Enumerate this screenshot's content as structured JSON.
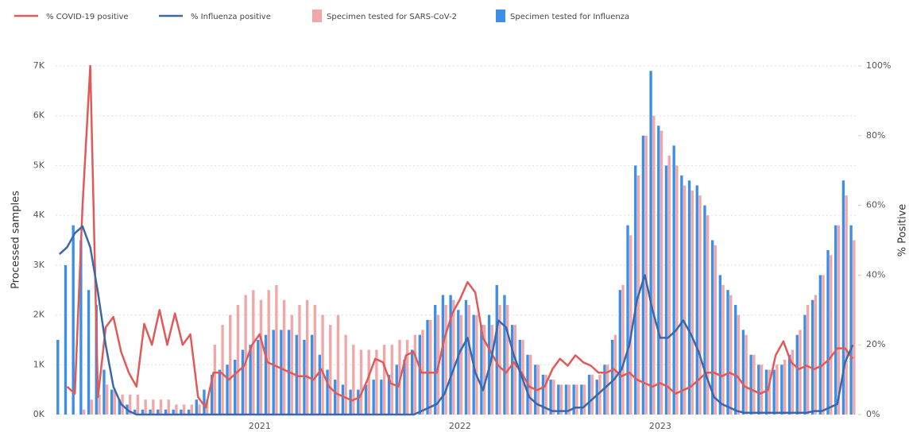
{
  "chart_data": {
    "type": "combo",
    "y_label": "Processed samples",
    "y2_label": "% Positive",
    "categories": [
      null,
      null,
      null,
      null,
      null,
      null,
      null,
      null,
      null,
      null,
      null,
      null,
      null,
      null,
      null,
      null,
      null,
      null,
      null,
      null,
      null,
      null,
      null,
      null,
      null,
      null,
      "2021",
      null,
      null,
      null,
      null,
      null,
      null,
      null,
      null,
      null,
      null,
      null,
      null,
      null,
      null,
      null,
      null,
      null,
      null,
      null,
      null,
      null,
      null,
      null,
      null,
      null,
      "2022",
      null,
      null,
      null,
      null,
      null,
      null,
      null,
      null,
      null,
      null,
      null,
      null,
      null,
      null,
      null,
      null,
      null,
      null,
      null,
      null,
      null,
      null,
      null,
      null,
      null,
      "2023",
      null,
      null,
      null,
      null,
      null,
      null,
      null,
      null,
      null,
      null,
      null,
      null,
      null,
      null,
      null,
      null,
      null,
      null,
      null,
      null,
      null,
      null,
      null,
      null,
      null
    ],
    "series": [
      {
        "name": "% COVID-19 positive",
        "type": "line",
        "axis": "y2",
        "color": "#e05a5a",
        "values": [
          null,
          8,
          6,
          60,
          100,
          5,
          25,
          28,
          18,
          12,
          8,
          26,
          20,
          30,
          20,
          29,
          20,
          23,
          5,
          2,
          12,
          12,
          10,
          12,
          14,
          20,
          23,
          15,
          14,
          13,
          12,
          11,
          11,
          10,
          13,
          8,
          6,
          5,
          4,
          5,
          10,
          16,
          15,
          9,
          8,
          17,
          18,
          12,
          12,
          12,
          22,
          29,
          33,
          38,
          35,
          22,
          18,
          14,
          12,
          15,
          12,
          8,
          7,
          8,
          13,
          16,
          14,
          17,
          15,
          14,
          12,
          12,
          13,
          11,
          12,
          10,
          9,
          8,
          9,
          8,
          6,
          7,
          8,
          10,
          12,
          12,
          11,
          12,
          11,
          8,
          7,
          6,
          7,
          17,
          21,
          15,
          13,
          14,
          13,
          14,
          16,
          19,
          19,
          16
        ]
      },
      {
        "name": "% Influenza positive",
        "type": "line",
        "axis": "y2",
        "color": "#3a68aa",
        "values": [
          46,
          48,
          52,
          54,
          48,
          35,
          20,
          8,
          3,
          1,
          0,
          0,
          0,
          0,
          0,
          0,
          0,
          0,
          0,
          0,
          0,
          0,
          0,
          0,
          0,
          0,
          0,
          0,
          0,
          0,
          0,
          0,
          0,
          0,
          0,
          0,
          0,
          0,
          0,
          0,
          0,
          0,
          0,
          0,
          0,
          0,
          0,
          1,
          2,
          3,
          6,
          12,
          18,
          22,
          12,
          7,
          15,
          27,
          25,
          17,
          11,
          5,
          3,
          2,
          1,
          1,
          1,
          2,
          2,
          4,
          6,
          8,
          10,
          13,
          20,
          33,
          40,
          30,
          22,
          22,
          24,
          27,
          23,
          18,
          11,
          5,
          3,
          2,
          1,
          0.5,
          0.5,
          0.5,
          0.5,
          0.5,
          0.5,
          0.5,
          0.5,
          0.5,
          1,
          1,
          2,
          3,
          15,
          20
        ]
      },
      {
        "name": "Specimen tested for SARS-CoV-2",
        "type": "bar",
        "color": "#f1a7a7",
        "values": [
          0,
          0,
          0,
          100,
          300,
          400,
          600,
          500,
          400,
          400,
          400,
          300,
          300,
          300,
          300,
          200,
          200,
          200,
          200,
          300,
          1400,
          1800,
          2000,
          2200,
          2400,
          2500,
          2300,
          2500,
          2600,
          2300,
          2000,
          2200,
          2300,
          2200,
          2000,
          1800,
          2000,
          1600,
          1400,
          1300,
          1300,
          1300,
          1400,
          1400,
          1500,
          1500,
          1600,
          1700,
          1900,
          2000,
          2200,
          2300,
          2000,
          2200,
          2000,
          1800,
          1800,
          2200,
          2200,
          1800,
          1500,
          1200,
          1000,
          800,
          700,
          600,
          600,
          600,
          600,
          800,
          800,
          1000,
          1600,
          2600,
          3600,
          4800,
          5600,
          6000,
          5700,
          5200,
          5000,
          4600,
          4500,
          4400,
          4000,
          3400,
          2600,
          2400,
          2000,
          1600,
          1200,
          1000,
          900,
          1000,
          1100,
          1300,
          1700,
          2200,
          2400,
          2800,
          3200,
          3800,
          4400,
          3500
        ]
      },
      {
        "name": "Specimen tested for Influenza",
        "type": "bar",
        "color": "#3d8ee6",
        "values": [
          1500,
          3000,
          3800,
          3500,
          2500,
          2200,
          900,
          500,
          300,
          200,
          100,
          100,
          100,
          100,
          100,
          100,
          100,
          100,
          300,
          500,
          800,
          900,
          1000,
          1100,
          1300,
          1400,
          1500,
          1600,
          1700,
          1700,
          1700,
          1600,
          1500,
          1600,
          1200,
          900,
          700,
          600,
          500,
          500,
          600,
          700,
          700,
          800,
          1000,
          1100,
          1300,
          1600,
          1900,
          2200,
          2400,
          2400,
          2100,
          2300,
          2000,
          1800,
          2000,
          2600,
          2400,
          1800,
          1500,
          1200,
          1000,
          800,
          700,
          600,
          600,
          600,
          600,
          800,
          700,
          1000,
          1500,
          2500,
          3800,
          5000,
          5600,
          6900,
          5800,
          5000,
          5400,
          4800,
          4700,
          4600,
          4200,
          3500,
          2800,
          2500,
          2200,
          1700,
          1200,
          1000,
          900,
          900,
          1000,
          1200,
          1600,
          2000,
          2300,
          2800,
          3300,
          3800,
          4700,
          3800
        ]
      }
    ],
    "ylim": [
      0,
      7000
    ],
    "yticks": [
      {
        "value": 0,
        "label": "0K"
      },
      {
        "value": 1000,
        "label": "1K"
      },
      {
        "value": 2000,
        "label": "2K"
      },
      {
        "value": 3000,
        "label": "3K"
      },
      {
        "value": 4000,
        "label": "4K"
      },
      {
        "value": 5000,
        "label": "5K"
      },
      {
        "value": 6000,
        "label": "6K"
      },
      {
        "value": 7000,
        "label": "7K"
      }
    ],
    "y2lim": [
      0,
      100
    ],
    "y2ticks": [
      {
        "value": 0,
        "label": "0%"
      },
      {
        "value": 20,
        "label": "20%"
      },
      {
        "value": 40,
        "label": "40%"
      },
      {
        "value": 60,
        "label": "60%"
      },
      {
        "value": 80,
        "label": "80%"
      },
      {
        "value": 100,
        "label": "100%"
      }
    ],
    "grid": true
  }
}
